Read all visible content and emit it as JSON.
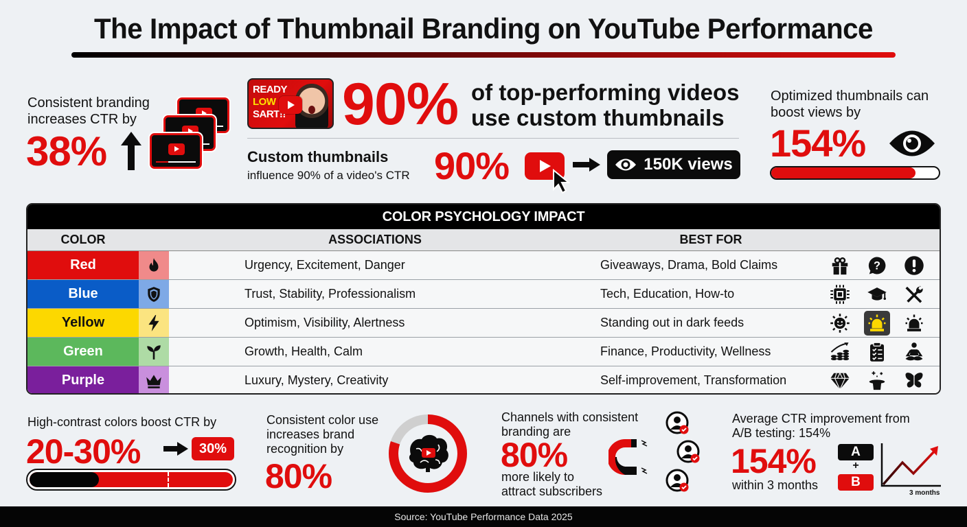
{
  "title": "The Impact of Thumbnail Branding on YouTube Performance",
  "colors": {
    "accent_red": "#e00d0d",
    "black": "#0b0b0b",
    "background": "#eef1f4"
  },
  "stats": {
    "consistent_branding": {
      "label_line1": "Consistent branding",
      "label_line2": "increases CTR by",
      "value": "38%",
      "icons": [
        "up-arrow-icon",
        "stacked-video-thumbnails-icon"
      ]
    },
    "top_videos": {
      "thumbnail_text": [
        "READY",
        "LOW",
        "SART!!"
      ],
      "value": "90%",
      "text_line1": "of top-performing videos",
      "text_line2": "use custom thumbnails"
    },
    "ctr_influence": {
      "title": "Custom thumbnails",
      "subtitle": "influence 90% of a video's CTR",
      "value": "90%",
      "views_label": "150K views",
      "icons": [
        "youtube-play-cursor-icon",
        "arrow-right-icon",
        "eye-icon"
      ]
    },
    "optimized_views": {
      "label_line1": "Optimized thumbnails can",
      "label_line2": "boost views by",
      "value": "154%",
      "progress_percent": 86
    },
    "high_contrast": {
      "label": "High-contrast colors boost CTR by",
      "value": "20-30%",
      "badge": "30%",
      "progress_dark_percent": 34,
      "progress_marker_percent": 68
    },
    "brand_recognition": {
      "label_line1": "Consistent color use",
      "label_line2": "increases brand",
      "label_line3": "recognition by",
      "value": "80%",
      "donut_percent": 80
    },
    "subscribers": {
      "label_line1": "Channels with consistent",
      "label_line2": "branding are",
      "value": "80%",
      "sub_line1": "more likely to",
      "sub_line2": "attract subscribers"
    },
    "ab_testing": {
      "label_line1": "Average CTR improvement from",
      "label_line2": "A/B testing: 154%",
      "value": "154%",
      "sub": "within 3 months",
      "box_a": "A",
      "box_plus": "+",
      "box_b": "B",
      "trend_axis_label": "3 months"
    }
  },
  "table": {
    "title": "COLOR PSYCHOLOGY IMPACT",
    "headers": {
      "color": "COLOR",
      "associations": "ASSOCIATIONS",
      "best_for": "BEST FOR"
    },
    "rows": [
      {
        "color": "Red",
        "bg": "#e00d0d",
        "icon_bg": "#f08a8a",
        "text_color": "#ffffff",
        "icon": "fire-icon",
        "associations": "Urgency, Excitement, Danger",
        "best_for": "Giveaways, Drama, Bold Claims",
        "best_icons": [
          "gift-icon",
          "question-bubble-icon",
          "exclamation-icon"
        ]
      },
      {
        "color": "Blue",
        "bg": "#0a5cc7",
        "icon_bg": "#7ea9e6",
        "text_color": "#ffffff",
        "icon": "shield-icon",
        "associations": "Trust, Stability, Professionalism",
        "best_for": "Tech, Education, How-to",
        "best_icons": [
          "chip-icon",
          "graduation-cap-icon",
          "tools-icon"
        ]
      },
      {
        "color": "Yellow",
        "bg": "#fcd800",
        "icon_bg": "#fbe480",
        "text_color": "#111111",
        "icon": "lightning-icon",
        "associations": "Optimism, Visibility, Alertness",
        "best_for": "Standing out in dark feeds",
        "best_icons": [
          "sun-face-icon",
          "siren-icon",
          "alarm-light-icon"
        ]
      },
      {
        "color": "Green",
        "bg": "#5cb85c",
        "icon_bg": "#aedba5",
        "text_color": "#ffffff",
        "icon": "sprout-icon",
        "associations": "Growth, Health, Calm",
        "best_for": "Finance, Productivity, Wellness",
        "best_icons": [
          "coins-growth-icon",
          "clipboard-checklist-icon",
          "meditation-icon"
        ]
      },
      {
        "color": "Purple",
        "bg": "#7a1f9c",
        "icon_bg": "#c98fdd",
        "text_color": "#ffffff",
        "icon": "crown-icon",
        "associations": "Luxury, Mystery, Creativity",
        "best_for": "Self-improvement, Transformation",
        "best_icons": [
          "diamond-icon",
          "magic-hat-icon",
          "butterfly-icon"
        ]
      }
    ]
  },
  "footer": {
    "source": "Source: YouTube Performance Data 2025"
  },
  "chart_data": {
    "type": "table",
    "title": "The Impact of Thumbnail Branding on YouTube Performance",
    "key_metrics": [
      {
        "label": "Consistent branding increases CTR by",
        "value": 38,
        "unit": "%"
      },
      {
        "label": "Top-performing videos using custom thumbnails",
        "value": 90,
        "unit": "%"
      },
      {
        "label": "Custom thumbnails influence of video CTR",
        "value": 90,
        "unit": "%",
        "note": "150K views"
      },
      {
        "label": "Optimized thumbnails can boost views by",
        "value": 154,
        "unit": "%"
      },
      {
        "label": "High-contrast colors boost CTR by",
        "value_range": [
          20,
          30
        ],
        "unit": "%"
      },
      {
        "label": "Consistent color use increases brand recognition by",
        "value": 80,
        "unit": "%"
      },
      {
        "label": "Channels with consistent branding more likely to attract subscribers",
        "value": 80,
        "unit": "%"
      },
      {
        "label": "Average CTR improvement from A/B testing (within 3 months)",
        "value": 154,
        "unit": "%"
      }
    ],
    "table": {
      "title": "COLOR PSYCHOLOGY IMPACT",
      "columns": [
        "COLOR",
        "ASSOCIATIONS",
        "BEST FOR"
      ],
      "rows": [
        [
          "Red",
          "Urgency, Excitement, Danger",
          "Giveaways, Drama, Bold Claims"
        ],
        [
          "Blue",
          "Trust, Stability, Professionalism",
          "Tech, Education, How-to"
        ],
        [
          "Yellow",
          "Optimism, Visibility, Alertness",
          "Standing out in dark feeds"
        ],
        [
          "Green",
          "Growth, Health, Calm",
          "Finance, Productivity, Wellness"
        ],
        [
          "Purple",
          "Luxury, Mystery, Creativity",
          "Self-improvement, Transformation"
        ]
      ]
    },
    "source": "Source: YouTube Performance Data 2025"
  }
}
